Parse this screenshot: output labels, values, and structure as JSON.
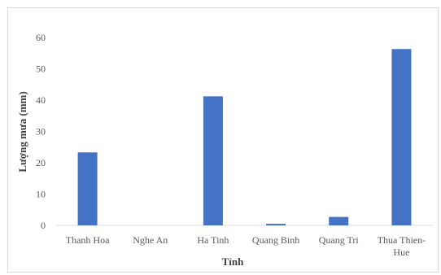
{
  "chart_data": {
    "type": "bar",
    "categories": [
      "Thanh Hoa",
      "Nghe An",
      "Ha Tinh",
      "Quang Binh",
      "Quang Tri",
      "Thua Thien-Hue"
    ],
    "values": [
      23.3,
      0,
      41.2,
      0.5,
      2.7,
      56.3
    ],
    "title": "",
    "xlabel": "Tỉnh",
    "ylabel": "Lượng mưa (mm)",
    "ylim": [
      0,
      60
    ],
    "yticks": [
      0,
      10,
      20,
      30,
      40,
      50,
      60
    ],
    "grid": false,
    "legend": "none",
    "bar_color": "#4472c4"
  }
}
